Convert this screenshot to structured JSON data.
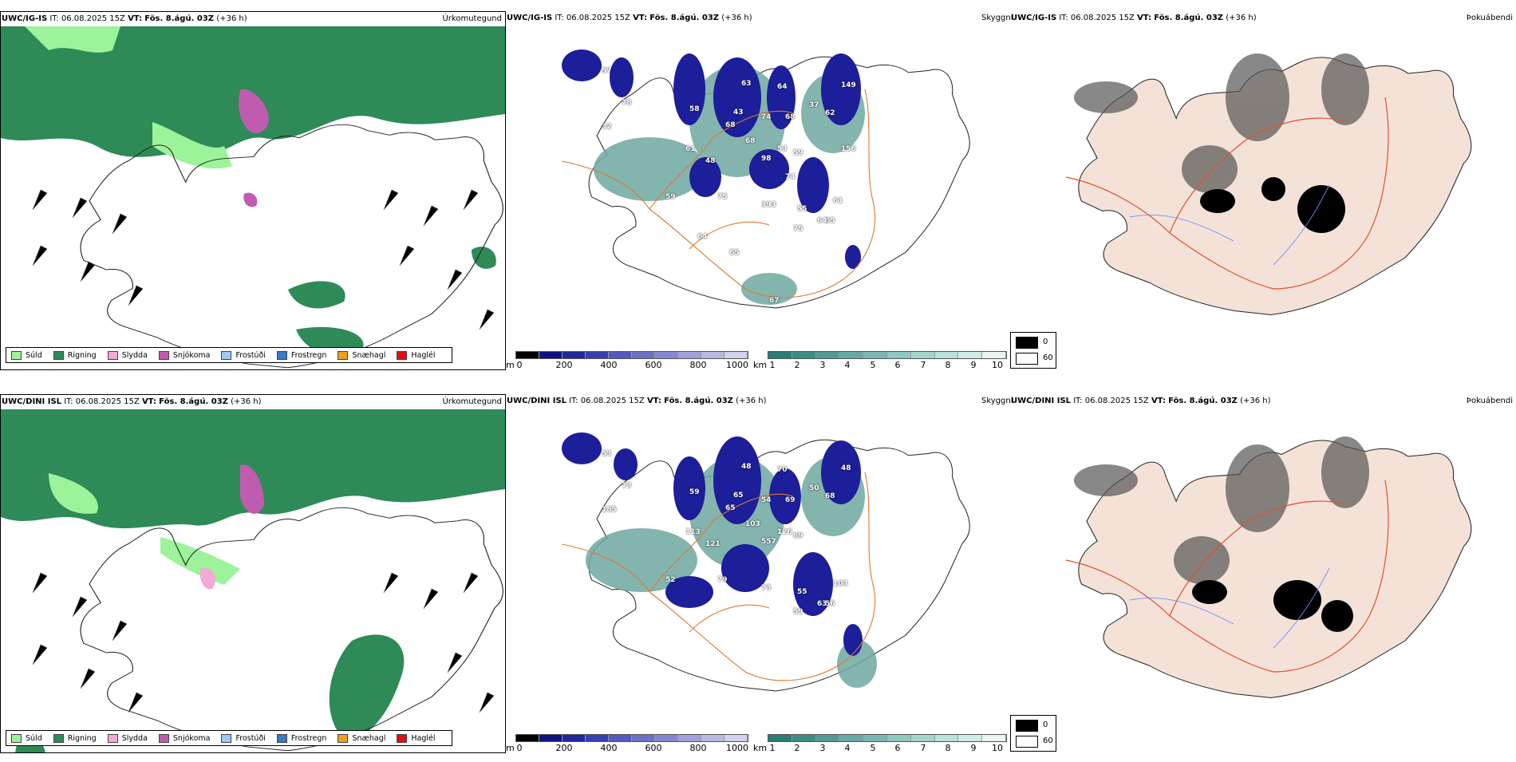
{
  "colors": {
    "drizzle": "#9cf39a",
    "rain": "#2e8b57",
    "sleet": "#f4a9d6",
    "snow": "#c05cb0",
    "freezing_drizzle": "#9ec9f4",
    "freezing_rain": "#3a78c8",
    "snow_pellets": "#f0a020",
    "hail": "#e01010",
    "roads": "#e07830",
    "rivers": "#6f8fff",
    "land_tint": "#f4e2d8"
  },
  "rows": [
    {
      "model": "UWC/IG-IS",
      "panels": [
        {
          "model": "UWC/IG-IS",
          "it_label": "IT:",
          "it_value": "06.08.2025 15Z",
          "vt_label": "VT:",
          "vt_value": "Fös. 8.ágú. 03Z",
          "lead": "(+36 h)",
          "right_title": "Úrkomutegund"
        },
        {
          "model": "UWC/IG-IS",
          "it_label": "IT:",
          "it_value": "06.08.2025 15Z",
          "vt_label": "VT:",
          "vt_value": "Fös. 8.ágú. 03Z",
          "lead": "(+36 h)",
          "right_title": ""
        },
        {
          "model": "UWC/IG-IS",
          "it_label": "IT:",
          "it_value": "06.08.2025 15Z",
          "vt_label": "VT:",
          "vt_value": "Fös. 8.ágú. 03Z",
          "lead": "(+36 h)",
          "right_title": "Þokuábendi",
          "left_title": "Skyggni"
        }
      ],
      "cloud_labels": [
        "57",
        "78",
        "58",
        "63",
        "64",
        "149",
        "32",
        "43",
        "74",
        "68",
        "62",
        "37",
        "61",
        "68",
        "68",
        "53",
        "59",
        "48",
        "98",
        "61",
        "65",
        "59",
        "75",
        "393",
        "55",
        "64",
        "75",
        "67",
        "65",
        "64",
        "74",
        "156"
      ]
    },
    {
      "model": "UWC/DINI ISL",
      "panels": [
        {
          "model": "UWC/DINI ISL",
          "it_label": "IT:",
          "it_value": "06.08.2025 15Z",
          "vt_label": "VT:",
          "vt_value": "Fös. 8.ágú. 03Z",
          "lead": "(+36 h)",
          "right_title": "Úrkomutegund"
        },
        {
          "model": "UWC/DINI ISL",
          "it_label": "IT:",
          "it_value": "06.08.2025 15Z",
          "vt_label": "VT:",
          "vt_value": "Fös. 8.ágú. 03Z",
          "lead": "(+36 h)",
          "right_title": ""
        },
        {
          "model": "UWC/DINI ISL",
          "it_label": "IT:",
          "it_value": "06.08.2025 15Z",
          "vt_label": "VT:",
          "vt_value": "Fös. 8.ágú. 03Z",
          "lead": "(+36 h)",
          "right_title": "Þokuábendi",
          "left_title": "Skyggni"
        }
      ],
      "cloud_labels": [
        "53",
        "73",
        "59",
        "48",
        "70",
        "48",
        "185",
        "65",
        "54",
        "69",
        "68",
        "50",
        "113",
        "65",
        "103",
        "126",
        "69",
        "121",
        "557",
        "103",
        "56",
        "52",
        "79",
        "73",
        "55",
        "63",
        "59"
      ]
    }
  ],
  "precip_legend": [
    "Súld",
    "Rigning",
    "Slydda",
    "Snjókoma",
    "Frostúði",
    "Frostregn",
    "Snæhagl",
    "Haglél"
  ],
  "height_scale": {
    "unit": "m",
    "ticks": [
      "0",
      "200",
      "400",
      "600",
      "800",
      "1000"
    ]
  },
  "distance_scale": {
    "unit": "km",
    "ticks": [
      "1",
      "2",
      "3",
      "4",
      "5",
      "6",
      "7",
      "8",
      "9",
      "10"
    ]
  },
  "fog_legend": {
    "low": "0",
    "high": "60"
  }
}
